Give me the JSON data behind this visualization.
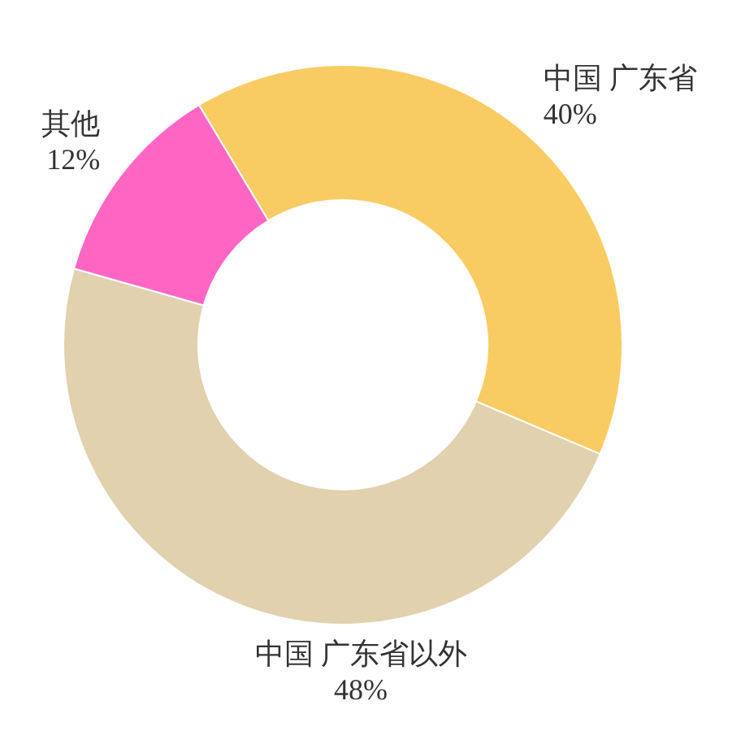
{
  "chart_data": {
    "type": "donut",
    "categories": [
      "中国 广东省",
      "中国 广东省以外",
      "其他"
    ],
    "values": [
      40,
      48,
      12
    ],
    "colors": [
      "#f9cc63",
      "#e2d1ae",
      "#ff66c4"
    ],
    "value_labels": [
      "40%",
      "48%",
      "12%"
    ]
  }
}
